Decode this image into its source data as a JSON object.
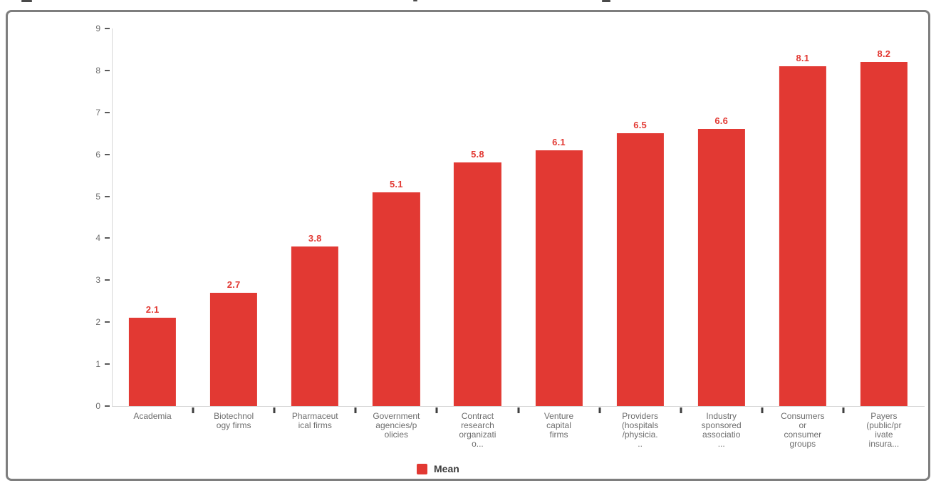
{
  "window": {
    "background": "#ffffff",
    "frame_border_color": "#7e7e7e"
  },
  "chart_data": {
    "type": "bar",
    "categories": [
      {
        "lines": [
          "Academia"
        ]
      },
      {
        "lines": [
          "Biotechnol",
          "ogy firms"
        ]
      },
      {
        "lines": [
          "Pharmaceut",
          "ical firms"
        ]
      },
      {
        "lines": [
          "Government",
          "agencies/p",
          "olicies"
        ]
      },
      {
        "lines": [
          "Contract",
          "research",
          "organizati",
          "o..."
        ]
      },
      {
        "lines": [
          "Venture",
          "capital",
          "firms"
        ]
      },
      {
        "lines": [
          "Providers",
          "(hospitals",
          "/physicia.",
          ".."
        ]
      },
      {
        "lines": [
          "Industry",
          "sponsored",
          "associatio",
          "..."
        ]
      },
      {
        "lines": [
          "Consumers",
          "or",
          "consumer",
          "groups"
        ]
      },
      {
        "lines": [
          "Payers",
          "(public/pr",
          "ivate",
          "insura..."
        ]
      }
    ],
    "series": [
      {
        "name": "Mean",
        "values": [
          2.1,
          2.7,
          3.8,
          5.1,
          5.8,
          6.1,
          6.5,
          6.6,
          8.1,
          8.2
        ]
      }
    ],
    "value_labels": [
      "2.1",
      "2.7",
      "3.8",
      "5.1",
      "5.8",
      "6.1",
      "6.5",
      "6.6",
      "8.1",
      "8.2"
    ],
    "ylim": [
      0,
      9
    ],
    "yticks": [
      "0",
      "1",
      "2",
      "3",
      "4",
      "5",
      "6",
      "7",
      "8",
      "9"
    ],
    "grid": false,
    "legend": {
      "label": "Mean",
      "position": "bottom-center"
    },
    "colors": {
      "bar": "#e23933",
      "value_label": "#e23933",
      "axis_text": "#6e6e6e",
      "axis_line": "#d6d6d6",
      "tick": "#3f3f3f",
      "legend_text": "#3c3c3c",
      "frame_border": "#7e7e7e"
    }
  }
}
